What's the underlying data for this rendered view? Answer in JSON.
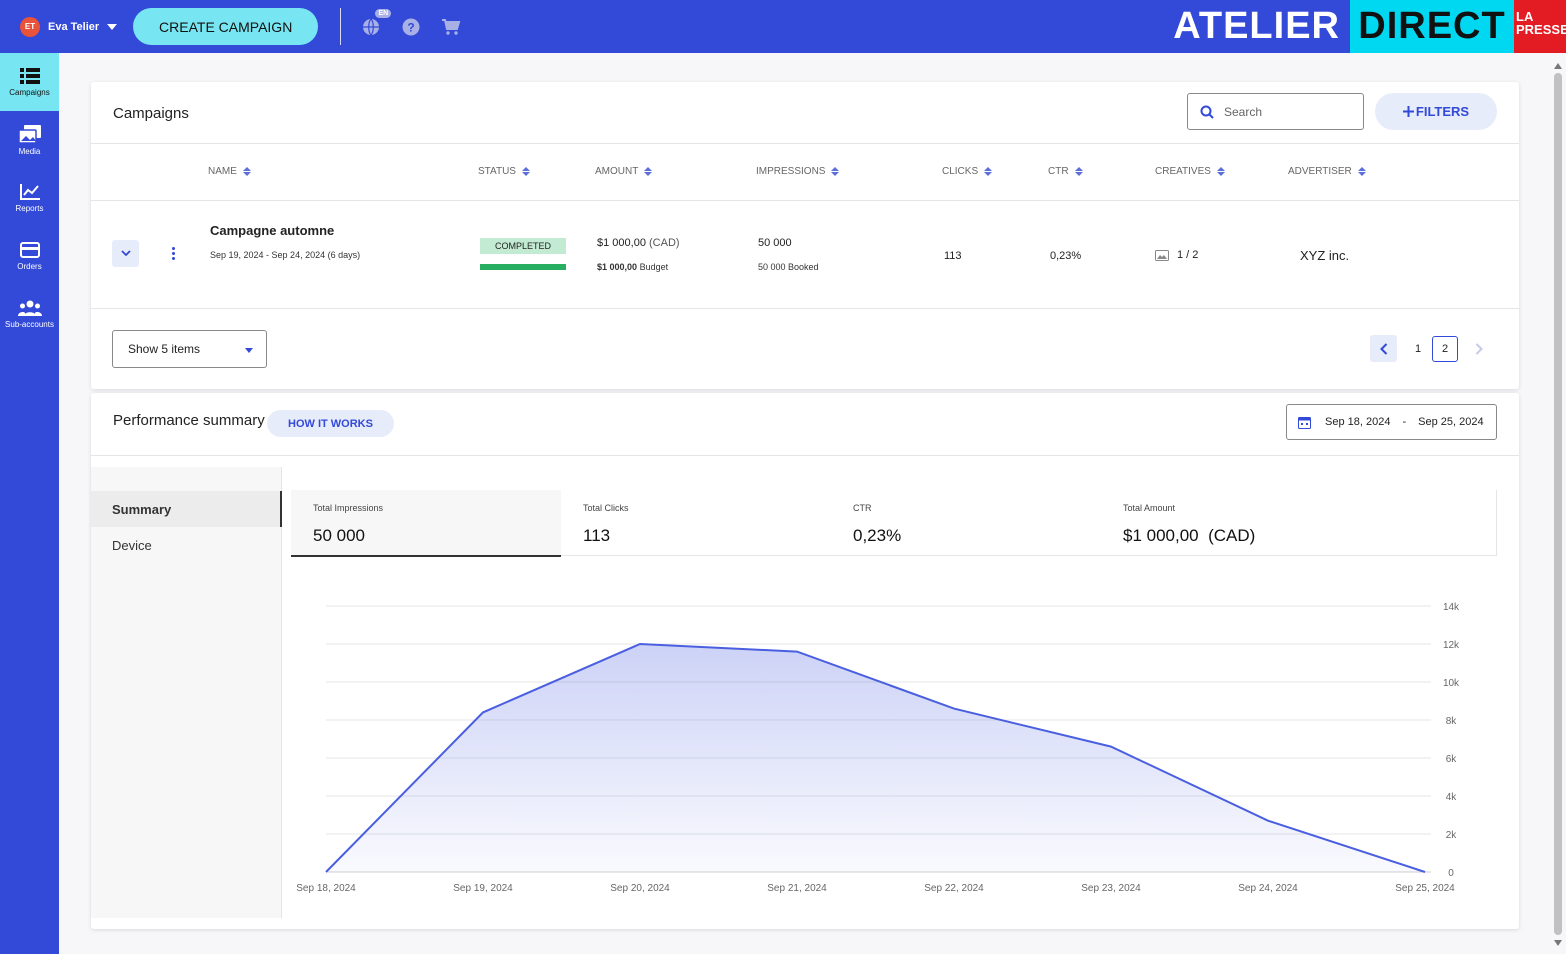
{
  "topbar": {
    "user_initials": "ET",
    "user_name": "Eva Telier",
    "create_label": "CREATE CAMPAIGN",
    "lang_badge": "EN",
    "brand_atelier": "ATELIER",
    "brand_direct": "DIRECT",
    "brand_lapresse_1": "LA",
    "brand_lapresse_2": "PRESSE",
    "accent": "#3349d8",
    "cyan": "#78e6f2"
  },
  "sidebar": {
    "items": [
      {
        "label": "Campaigns",
        "icon": "list-icon"
      },
      {
        "label": "Media",
        "icon": "media-icon"
      },
      {
        "label": "Reports",
        "icon": "chart-icon"
      },
      {
        "label": "Orders",
        "icon": "card-icon"
      },
      {
        "label": "Sub-accounts",
        "icon": "users-icon"
      }
    ]
  },
  "campaigns": {
    "title": "Campaigns",
    "search_placeholder": "Search",
    "filters_label": "FILTERS",
    "columns": [
      "NAME",
      "STATUS",
      "AMOUNT",
      "IMPRESSIONS",
      "CLICKS",
      "CTR",
      "CREATIVES",
      "ADVERTISER"
    ],
    "row": {
      "name": "Campagne automne",
      "dates": "Sep 19, 2024 - Sep 24, 2024 (6 days)",
      "status": "COMPLETED",
      "amount": "$1 000,00",
      "currency": "(CAD)",
      "budget_value": "$1 000,00",
      "budget_label": "Budget",
      "impressions": "50 000",
      "booked": "50 000 Booked",
      "clicks": "113",
      "ctr": "0,23%",
      "creatives": "1 / 2",
      "advertiser": "XYZ inc."
    },
    "show_items": "Show 5 items",
    "pages": [
      "1",
      "2"
    ],
    "current_page": "2"
  },
  "performance": {
    "title": "Performance summary",
    "how_label": "HOW IT WORKS",
    "date_start": "Sep 18, 2024",
    "date_sep": "-",
    "date_end": "Sep 25, 2024",
    "tabs": [
      "Summary",
      "Device"
    ],
    "metrics": [
      {
        "label": "Total Impressions",
        "value": "50 000"
      },
      {
        "label": "Total Clicks",
        "value": "113"
      },
      {
        "label": "CTR",
        "value": "0,23%"
      },
      {
        "label": "Total Amount",
        "value": "$1 000,00  (CAD)"
      }
    ]
  },
  "chart_data": {
    "type": "area",
    "x": [
      "Sep 18, 2024",
      "Sep 19, 2024",
      "Sep 20, 2024",
      "Sep 21, 2024",
      "Sep 22, 2024",
      "Sep 23, 2024",
      "Sep 24, 2024",
      "Sep 25, 2024"
    ],
    "series": [
      {
        "values": [
          0,
          8400,
          12000,
          11600,
          8600,
          6600,
          2700,
          0
        ]
      }
    ],
    "yticks": [
      "0",
      "2k",
      "4k",
      "6k",
      "8k",
      "10k",
      "12k",
      "14k"
    ],
    "ylim": [
      0,
      14000
    ],
    "grid": true,
    "color": "#4a5fe0"
  }
}
